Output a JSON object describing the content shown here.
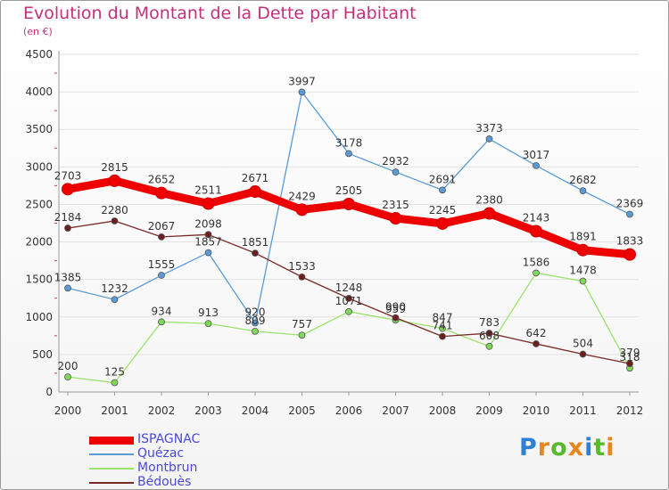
{
  "header": {
    "title": "Evolution du Montant de la Dette par Habitant",
    "subtitle": "(en €)"
  },
  "colors": {
    "title": "#c4307a",
    "axis_text": "#333333",
    "legend_text": "#4a4ad8",
    "grid": "#e2e2e2"
  },
  "chart_data": {
    "type": "line",
    "title": "Evolution du Montant de la Dette par Habitant",
    "subtitle": "(en €)",
    "xlabel": "",
    "ylabel": "",
    "x": [
      "2000",
      "2001",
      "2002",
      "2003",
      "2004",
      "2005",
      "2006",
      "2007",
      "2008",
      "2009",
      "2010",
      "2011",
      "2012"
    ],
    "ylim": [
      0,
      4500
    ],
    "yticks": [
      0,
      500,
      1000,
      1500,
      2000,
      2500,
      3000,
      3500,
      4000,
      4500
    ],
    "grid": true,
    "legend_position": "bottom-left",
    "series": [
      {
        "name": "ISPAGNAC",
        "color": "#ee0000",
        "marker": "#ee0000",
        "values": [
          2703,
          2815,
          2652,
          2511,
          2671,
          2429,
          2505,
          2315,
          2245,
          2380,
          2143,
          1891,
          1833
        ]
      },
      {
        "name": "Quézac",
        "color": "#5b9bd5",
        "marker": "#5b9bd5",
        "values": [
          1385,
          1232,
          1555,
          1857,
          920,
          3997,
          3178,
          2932,
          2691,
          3373,
          3017,
          2682,
          2369
        ]
      },
      {
        "name": "Montbrun",
        "color": "#9be36d",
        "marker": "#7ed957",
        "values": [
          200,
          125,
          934,
          913,
          809,
          757,
          1071,
          959,
          847,
          608,
          1586,
          1478,
          318
        ]
      },
      {
        "name": "Bédouès",
        "color": "#7a2a2a",
        "marker": "#6b1f1f",
        "values": [
          2184,
          2280,
          2067,
          2098,
          1851,
          1533,
          1248,
          990,
          741,
          783,
          642,
          504,
          379
        ]
      }
    ]
  },
  "logo": {
    "letters": [
      "P",
      "r",
      "o",
      "x",
      "i",
      "t",
      "i"
    ],
    "colors": [
      "#2f7fd6",
      "#e8861b",
      "#59b92e",
      "#e8861b",
      "#2f7fd6",
      "#59b92e",
      "#e8861b"
    ]
  }
}
